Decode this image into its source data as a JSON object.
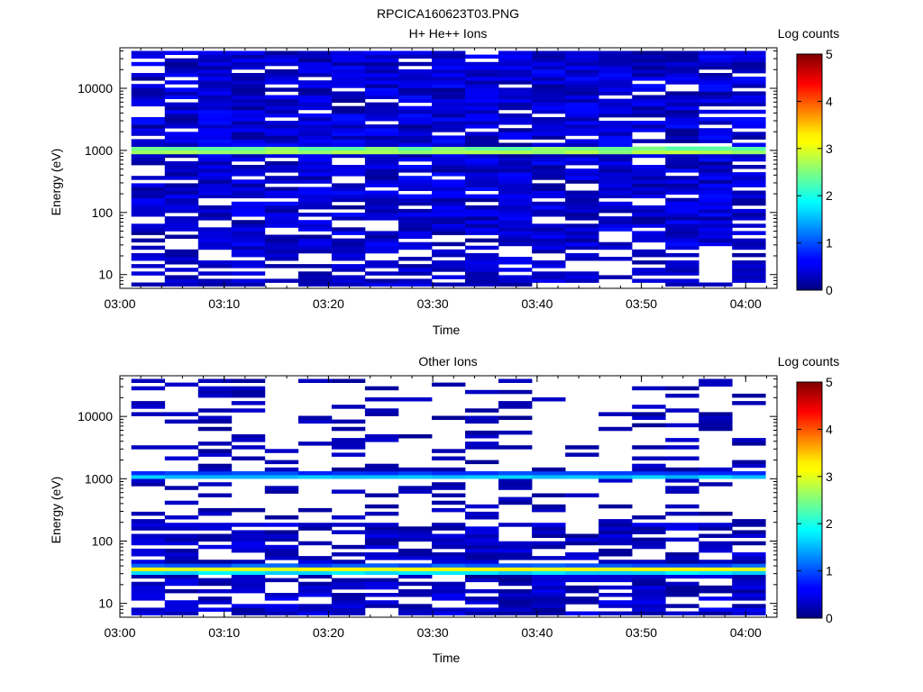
{
  "figure_title": "RPCICA160623T03.PNG",
  "chart_data": [
    {
      "type": "heatmap",
      "title": "H+ He++ Ions",
      "xlabel": "Time",
      "ylabel": "Energy (eV)",
      "x_ticks": [
        "03:00",
        "03:10",
        "03:20",
        "03:30",
        "03:40",
        "03:50",
        "04:00"
      ],
      "x_range": [
        "03:00",
        "04:03"
      ],
      "y_ticks": [
        "10",
        "100",
        "1000",
        "10000"
      ],
      "y_scale": "log",
      "y_range": [
        6,
        45000
      ],
      "time_bins": 19,
      "colorbar": {
        "label": "Log counts",
        "range": [
          0,
          5
        ],
        "ticks": [
          "0",
          "1",
          "2",
          "3",
          "4",
          "5"
        ]
      },
      "peak_band": {
        "energy_eV": 1000,
        "log_counts": 3.0
      },
      "background_log_counts": [
        0.1,
        0.7
      ],
      "low_energy_gaps_below_eV": 30
    },
    {
      "type": "heatmap",
      "title": "Other Ions",
      "xlabel": "Time",
      "ylabel": "Energy (eV)",
      "x_ticks": [
        "03:00",
        "03:10",
        "03:20",
        "03:30",
        "03:40",
        "03:50",
        "04:00"
      ],
      "x_range": [
        "03:00",
        "04:03"
      ],
      "y_ticks": [
        "10",
        "100",
        "1000",
        "10000"
      ],
      "y_scale": "log",
      "y_range": [
        6,
        45000
      ],
      "time_bins": 19,
      "colorbar": {
        "label": "Log counts",
        "range": [
          0,
          5
        ],
        "ticks": [
          "0",
          "1",
          "2",
          "3",
          "4",
          "5"
        ]
      },
      "peak_bands": [
        {
          "energy_eV": 35,
          "log_counts": 3.0
        },
        {
          "energy_eV": 1100,
          "log_counts": 1.5
        }
      ],
      "background_log_counts": [
        0.1,
        0.5
      ],
      "sparse_above_eV": 200
    }
  ]
}
